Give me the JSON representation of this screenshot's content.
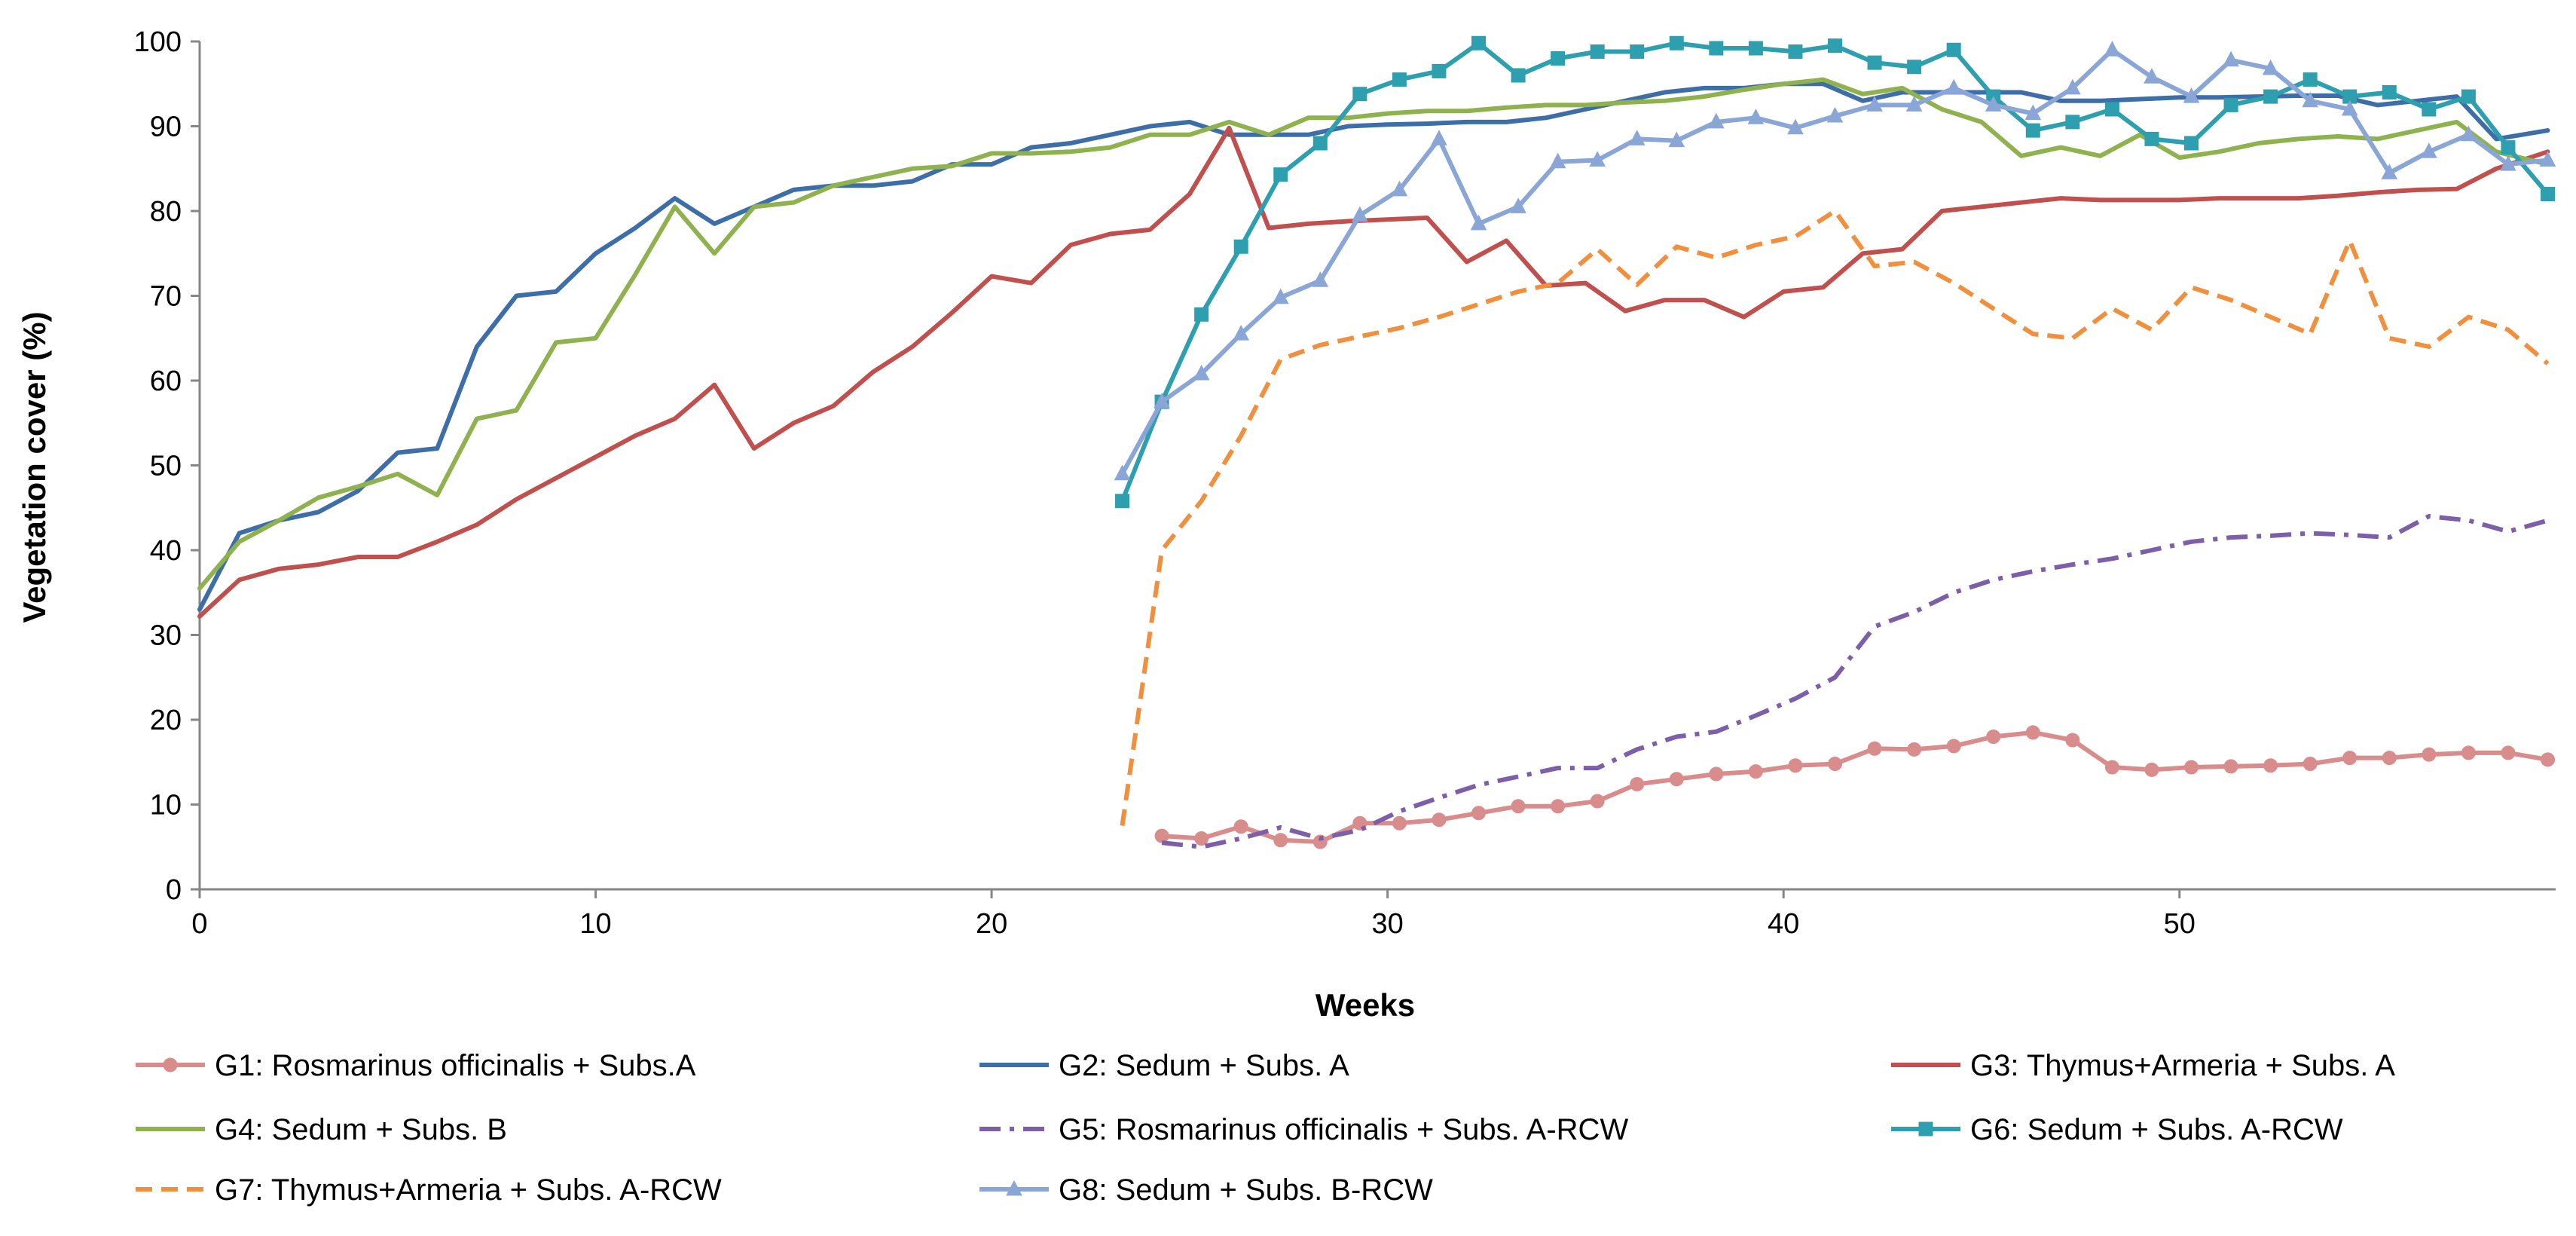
{
  "chart_data": {
    "type": "line",
    "title": "",
    "xlabel": "Weeks",
    "ylabel": "Vegetation cover (%)",
    "xlim": [
      0,
      59.5
    ],
    "ylim": [
      0,
      100
    ],
    "xticks": [
      0,
      10,
      20,
      30,
      40,
      50
    ],
    "yticks": [
      0,
      10,
      20,
      30,
      40,
      50,
      60,
      70,
      80,
      90,
      100
    ],
    "grid": false,
    "legend_position": "bottom",
    "series": [
      {
        "name": "G1: Rosmarinus officinalis + Subs.A",
        "color": "#d98c8c",
        "style": "solid",
        "marker": "circle",
        "x": [
          24.3,
          25.3,
          26.3,
          27.3,
          28.3,
          29.3,
          30.3,
          31.3,
          32.3,
          33.3,
          34.3,
          35.3,
          36.3,
          37.3,
          38.3,
          39.3,
          40.3,
          41.3,
          42.3,
          43.3,
          44.3,
          45.3,
          46.3,
          47.3,
          48.3,
          49.3,
          50.3,
          51.3,
          52.3,
          53.3,
          54.3,
          55.3,
          56.3,
          57.3,
          58.3,
          59.3
        ],
        "y": [
          6.3,
          6.0,
          7.4,
          5.8,
          5.6,
          7.8,
          7.8,
          8.2,
          9.0,
          9.8,
          9.8,
          10.4,
          12.4,
          13.0,
          13.6,
          13.9,
          14.6,
          14.8,
          16.6,
          16.5,
          16.9,
          18.0,
          18.5,
          17.6,
          14.4,
          14.1,
          14.4,
          14.5,
          14.6,
          14.8,
          15.5,
          15.5,
          15.9,
          16.1,
          16.1,
          15.3
        ]
      },
      {
        "name": "G2: Sedum + Subs. A",
        "color": "#3d6ea8",
        "style": "solid",
        "marker": "none",
        "x": [
          0,
          1,
          2,
          3,
          4,
          5,
          6,
          7,
          8,
          9,
          10,
          11,
          12,
          13,
          14,
          15,
          16,
          17,
          18,
          19,
          20,
          21,
          22,
          23,
          24,
          25,
          26,
          27,
          28,
          29,
          30,
          31,
          32,
          33,
          34,
          35,
          36,
          37,
          38,
          39,
          40,
          41,
          42,
          43,
          44,
          45,
          46,
          47,
          48,
          49,
          50,
          51,
          52,
          53,
          54,
          55,
          56,
          57,
          58,
          59.3
        ],
        "y": [
          33,
          42,
          43.5,
          44.5,
          47,
          51.5,
          52,
          64,
          70,
          70.5,
          75,
          78,
          81.5,
          78.5,
          80.5,
          82.5,
          83,
          83,
          83.5,
          85.5,
          85.5,
          87.5,
          88,
          89,
          90,
          90.5,
          89,
          89,
          89,
          90,
          90.2,
          90.3,
          90.5,
          90.5,
          91,
          92,
          93,
          94,
          94.5,
          94.5,
          95,
          95,
          93,
          94,
          94,
          94,
          94,
          93,
          93,
          93.2,
          93.4,
          93.4,
          93.5,
          93.6,
          93.6,
          92.5,
          93,
          93.5,
          88.5,
          89.5
        ]
      },
      {
        "name": "G3: Thymus+Armeria + Subs. A",
        "color": "#c0504d",
        "style": "solid",
        "marker": "none",
        "x": [
          0,
          1,
          2,
          3,
          4,
          5,
          6,
          7,
          8,
          9,
          10,
          11,
          12,
          13,
          14,
          15,
          16,
          17,
          18,
          19,
          20,
          21,
          22,
          23,
          24,
          25,
          26,
          27,
          28,
          29,
          30,
          31,
          32,
          33,
          34,
          35,
          36,
          37,
          38,
          39,
          40,
          41,
          42,
          43,
          44,
          45,
          46,
          47,
          48,
          49,
          50,
          51,
          52,
          53,
          54,
          55,
          56,
          57,
          58,
          59.3
        ],
        "y": [
          32.2,
          36.5,
          37.8,
          38.3,
          39.2,
          39.2,
          41,
          43,
          46,
          48.5,
          51,
          53.5,
          55.5,
          59.5,
          52,
          55,
          57,
          61,
          64,
          68,
          72.3,
          71.5,
          76,
          77.3,
          77.8,
          82,
          89.8,
          78,
          78.5,
          78.8,
          79,
          79.2,
          74,
          76.5,
          71.2,
          71.5,
          68.2,
          69.5,
          69.5,
          67.5,
          70.5,
          71,
          75,
          75.5,
          80,
          80.5,
          81,
          81.5,
          81.3,
          81.3,
          81.3,
          81.5,
          81.5,
          81.5,
          81.8,
          82.2,
          82.5,
          82.6,
          85,
          87
        ]
      },
      {
        "name": "G4: Sedum + Subs. B",
        "color": "#8fb24f",
        "style": "solid",
        "marker": "none",
        "x": [
          0,
          1,
          2,
          3,
          4,
          5,
          6,
          7,
          8,
          9,
          10,
          11,
          12,
          13,
          14,
          15,
          16,
          17,
          18,
          19,
          20,
          21,
          22,
          23,
          24,
          25,
          26,
          27,
          28,
          29,
          30,
          31,
          32,
          33,
          34,
          35,
          36,
          37,
          38,
          39,
          40,
          41,
          42,
          43,
          44,
          45,
          46,
          47,
          48,
          49,
          50,
          51,
          52,
          53,
          54,
          55,
          56,
          57,
          58,
          59.3
        ],
        "y": [
          35.5,
          41,
          43.5,
          46.2,
          47.5,
          49,
          46.5,
          55.5,
          56.5,
          64.5,
          65,
          72.5,
          80.5,
          75,
          80.5,
          81,
          83,
          84,
          85,
          85.3,
          86.8,
          86.8,
          87,
          87.5,
          89,
          89,
          90.5,
          89,
          91,
          91,
          91.5,
          91.8,
          91.8,
          92.2,
          92.5,
          92.5,
          92.8,
          93,
          93.5,
          94.3,
          95,
          95.5,
          93.8,
          94.5,
          92,
          90.5,
          86.5,
          87.5,
          86.5,
          89,
          86.3,
          87,
          88,
          88.5,
          88.8,
          88.5,
          89.5,
          90.5,
          87,
          85.5
        ]
      },
      {
        "name": "G5: Rosmarinus officinalis + Subs. A-RCW",
        "color": "#7d5ea8",
        "style": "dashdot",
        "marker": "none",
        "x": [
          24.3,
          25.3,
          26.3,
          27.3,
          28.3,
          29.3,
          30.3,
          31.3,
          32.3,
          33.3,
          34.3,
          35.3,
          36.3,
          37.3,
          38.3,
          39.3,
          40.3,
          41.3,
          42.3,
          43.3,
          44.3,
          45.3,
          46.3,
          47.3,
          48.3,
          49.3,
          50.3,
          51.3,
          52.3,
          53.3,
          54.3,
          55.3,
          56.3,
          57.3,
          58.3,
          59.3
        ],
        "y": [
          5.5,
          5.0,
          6.0,
          7.3,
          6.0,
          7.0,
          9.2,
          10.8,
          12.3,
          13.3,
          14.3,
          14.3,
          16.5,
          18.0,
          18.6,
          20.5,
          22.5,
          25.0,
          31.0,
          32.7,
          35.0,
          36.5,
          37.5,
          38.3,
          39.0,
          40.0,
          41.0,
          41.5,
          41.7,
          42.0,
          41.8,
          41.5,
          44.0,
          43.5,
          42.2,
          43.5
        ]
      },
      {
        "name": "G6: Sedum + Subs. A-RCW",
        "color": "#2e9fae",
        "style": "solid",
        "marker": "square",
        "x": [
          23.3,
          24.3,
          25.3,
          26.3,
          27.3,
          28.3,
          29.3,
          30.3,
          31.3,
          32.3,
          33.3,
          34.3,
          35.3,
          36.3,
          37.3,
          38.3,
          39.3,
          40.3,
          41.3,
          42.3,
          43.3,
          44.3,
          45.3,
          46.3,
          47.3,
          48.3,
          49.3,
          50.3,
          51.3,
          52.3,
          53.3,
          54.3,
          55.3,
          56.3,
          57.3,
          58.3,
          59.3
        ],
        "y": [
          45.8,
          57.5,
          67.8,
          75.8,
          84.3,
          88,
          93.8,
          95.5,
          96.5,
          99.8,
          96,
          98,
          98.8,
          98.8,
          99.8,
          99.2,
          99.2,
          98.8,
          99.5,
          97.5,
          97,
          99,
          93.5,
          89.5,
          90.5,
          92,
          88.5,
          88,
          92.5,
          93.5,
          95.5,
          93.5,
          94,
          92,
          93.5,
          87.5,
          82
        ]
      },
      {
        "name": "G7: Thymus+Armeria + Subs. A-RCW",
        "color": "#f0903e",
        "style": "dashed",
        "marker": "none",
        "x": [
          23.3,
          24.3,
          25.3,
          26.3,
          27.3,
          28.3,
          29.3,
          30.3,
          31.3,
          32.3,
          33.3,
          34.3,
          35.3,
          36.3,
          37.3,
          38.3,
          39.3,
          40.3,
          41.3,
          42.3,
          43.3,
          44.3,
          45.3,
          46.3,
          47.3,
          48.3,
          49.3,
          50.3,
          51.3,
          52.3,
          53.3,
          54.3,
          55.3,
          56.3,
          57.3,
          58.3,
          59.3
        ],
        "y": [
          7.5,
          40,
          45.8,
          53.5,
          62.5,
          64.2,
          65.2,
          66.2,
          67.5,
          69,
          70.5,
          71.5,
          75.5,
          71.3,
          75.8,
          74.5,
          76,
          77,
          80,
          73.5,
          74,
          71.5,
          68.5,
          65.5,
          65,
          68.5,
          66,
          71,
          69.5,
          67.5,
          65.5,
          76.5,
          65,
          64,
          67.5,
          66,
          62
        ]
      },
      {
        "name": "G8: Sedum + Subs. B-RCW",
        "color": "#8aa6d6",
        "style": "solid",
        "marker": "triangle",
        "x": [
          23.3,
          24.3,
          25.3,
          26.3,
          27.3,
          28.3,
          29.3,
          30.3,
          31.3,
          32.3,
          33.3,
          34.3,
          35.3,
          36.3,
          37.3,
          38.3,
          39.3,
          40.3,
          41.3,
          42.3,
          43.3,
          44.3,
          45.3,
          46.3,
          47.3,
          48.3,
          49.3,
          50.3,
          51.3,
          52.3,
          53.3,
          54.3,
          55.3,
          56.3,
          57.3,
          58.3,
          59.3
        ],
        "y": [
          49,
          57.5,
          60.8,
          65.5,
          69.8,
          71.8,
          79.5,
          82.5,
          88.5,
          78.5,
          80.5,
          85.8,
          86,
          88.5,
          88.3,
          90.5,
          91,
          89.8,
          91.2,
          92.5,
          92.5,
          94.5,
          92.5,
          91.5,
          94.5,
          99,
          95.8,
          93.5,
          97.8,
          96.8,
          93,
          92,
          84.5,
          87,
          89,
          85.5,
          86
        ]
      }
    ]
  }
}
